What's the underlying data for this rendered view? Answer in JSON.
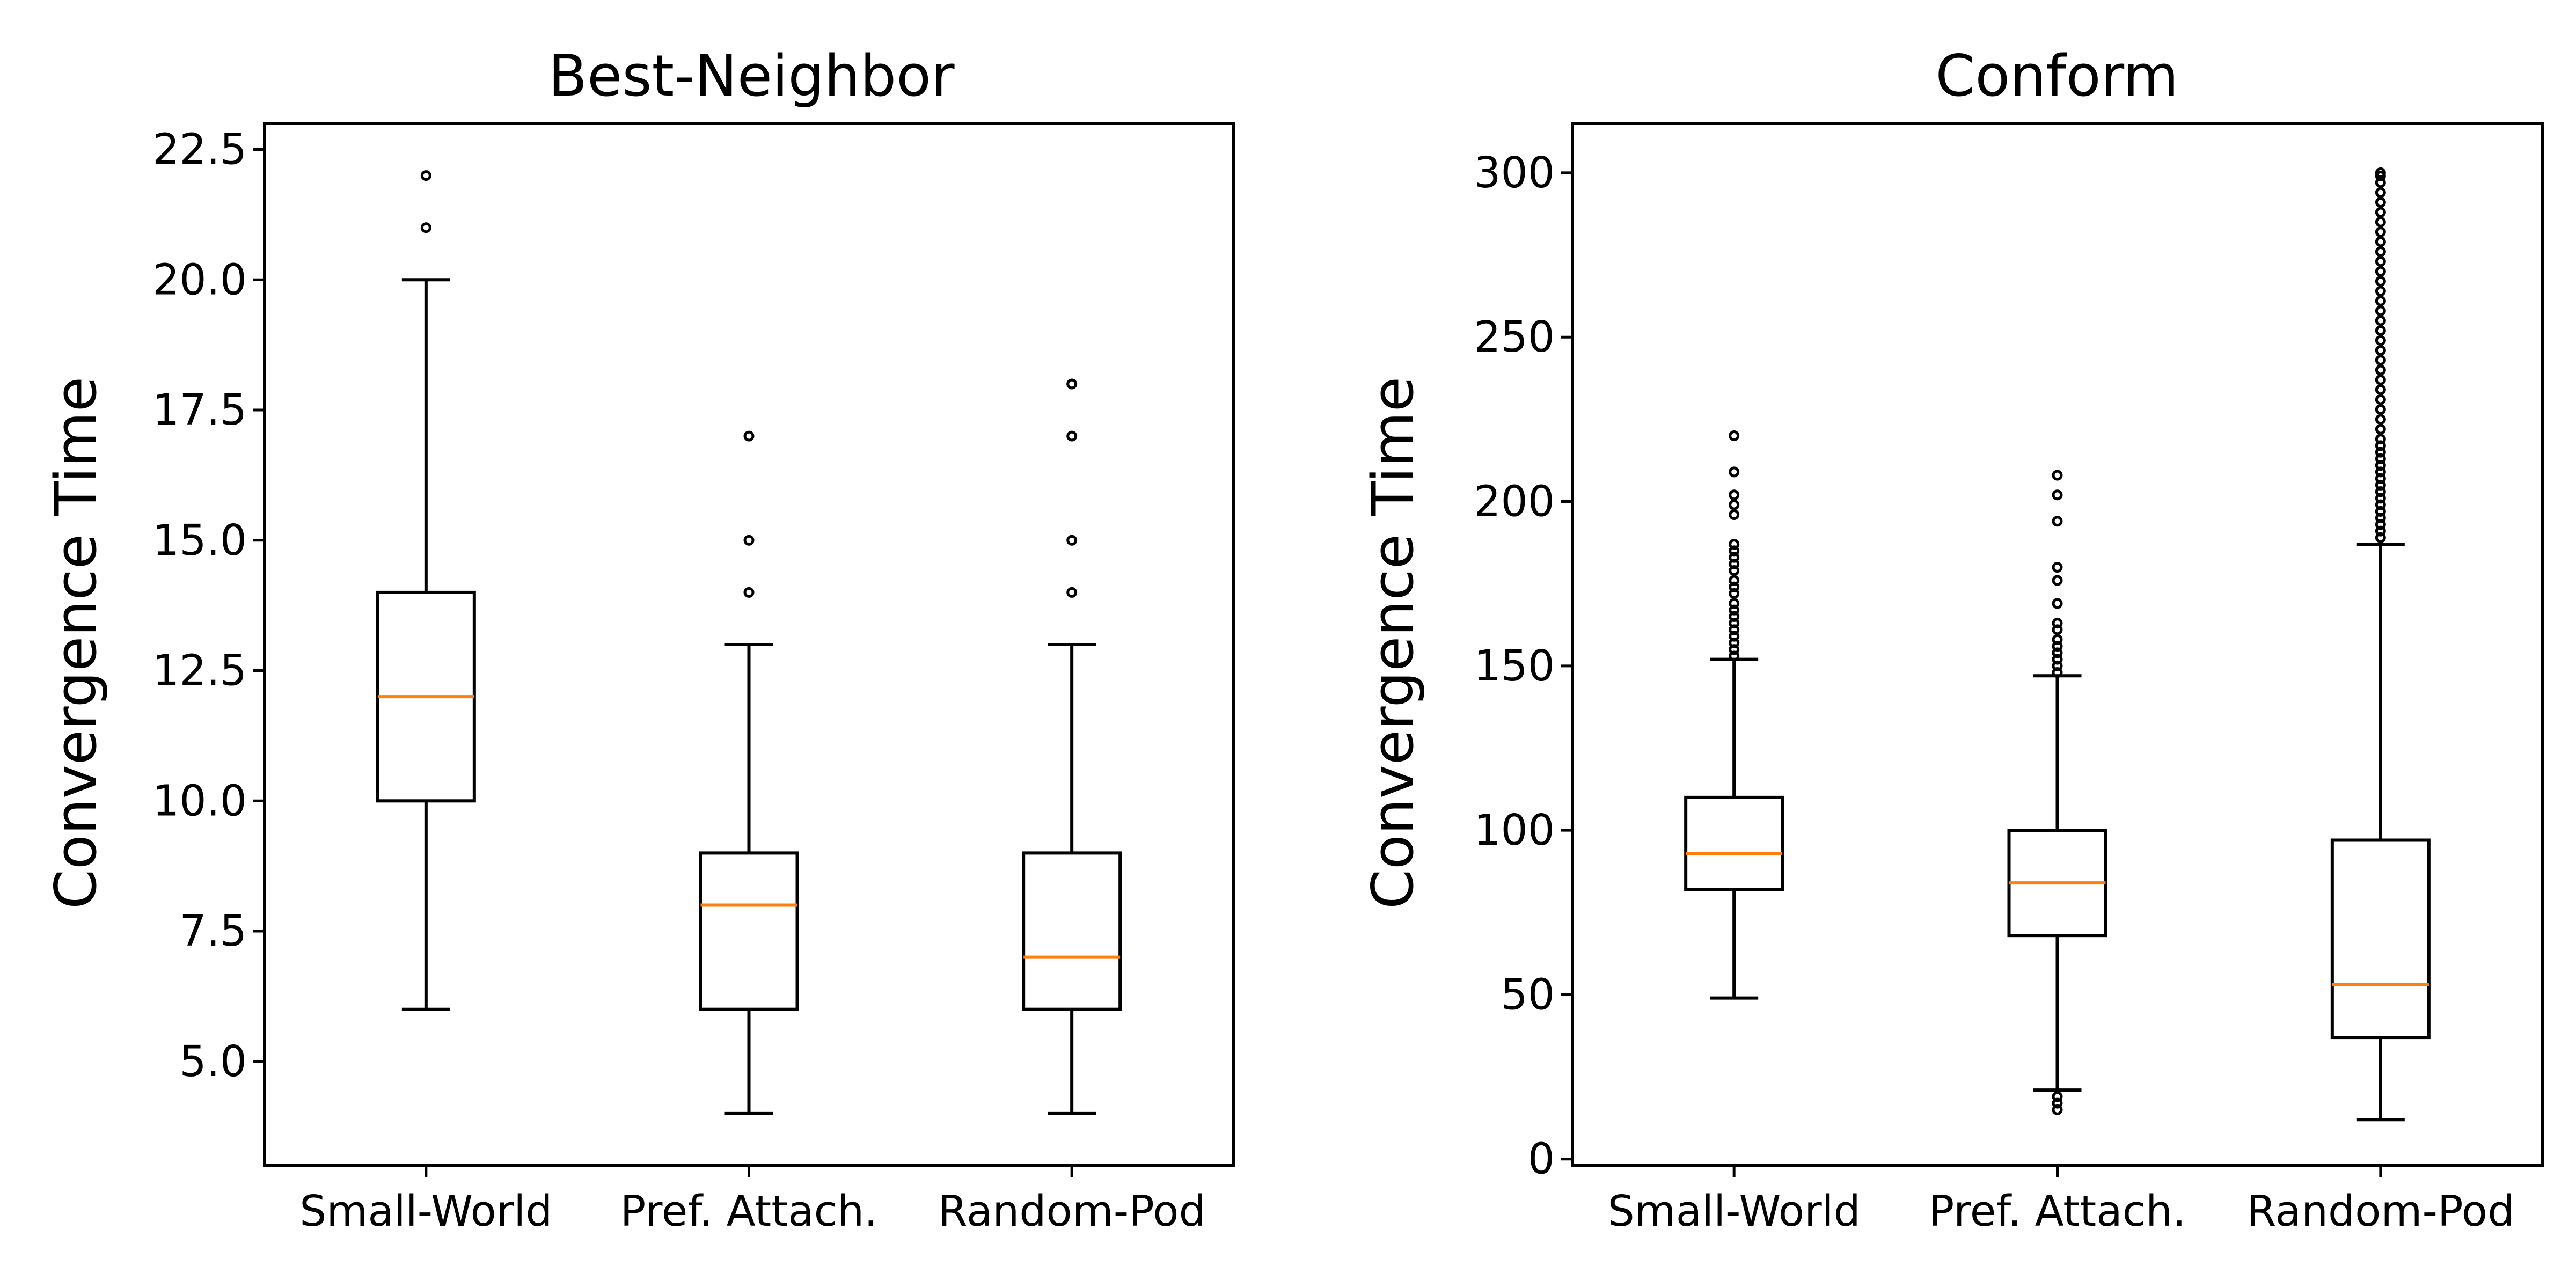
{
  "chart_data": [
    {
      "type": "box",
      "title": "Best-Neighbor",
      "xlabel": "",
      "ylabel": "Convergence Time",
      "categories": [
        "Small-World",
        "Pref. Attach.",
        "Random-Pod"
      ],
      "ylim": [
        3.0,
        23.0
      ],
      "yticks": [
        5.0,
        7.5,
        10.0,
        12.5,
        15.0,
        17.5,
        20.0,
        22.5
      ],
      "ytick_labels": [
        "5.0",
        "7.5",
        "10.0",
        "12.5",
        "15.0",
        "17.5",
        "20.0",
        "22.5"
      ],
      "grid": false,
      "colors": {
        "box": "#000000",
        "median": "#ff7f0e"
      },
      "boxes": [
        {
          "category": "Small-World",
          "whisker_low": 6,
          "q1": 10,
          "median": 12,
          "q3": 14,
          "whisker_high": 20,
          "outliers": [
            21,
            22
          ]
        },
        {
          "category": "Pref. Attach.",
          "whisker_low": 4,
          "q1": 6,
          "median": 8,
          "q3": 9,
          "whisker_high": 13,
          "outliers": [
            14,
            15,
            17
          ]
        },
        {
          "category": "Random-Pod",
          "whisker_low": 4,
          "q1": 6,
          "median": 7,
          "q3": 9,
          "whisker_high": 13,
          "outliers": [
            14,
            15,
            17,
            18
          ]
        }
      ]
    },
    {
      "type": "box",
      "title": "Conform",
      "xlabel": "",
      "ylabel": "Convergence Time",
      "categories": [
        "Small-World",
        "Pref. Attach.",
        "Random-Pod"
      ],
      "ylim": [
        -2,
        315
      ],
      "yticks": [
        0,
        50,
        100,
        150,
        200,
        250,
        300
      ],
      "ytick_labels": [
        "0",
        "50",
        "100",
        "150",
        "200",
        "250",
        "300"
      ],
      "grid": false,
      "colors": {
        "box": "#000000",
        "median": "#ff7f0e"
      },
      "boxes": [
        {
          "category": "Small-World",
          "whisker_low": 49,
          "q1": 82,
          "median": 93,
          "q3": 110,
          "whisker_high": 152,
          "outliers": [
            153,
            155,
            157,
            159,
            161,
            163,
            165,
            167,
            169,
            172,
            174,
            176,
            179,
            181,
            183,
            185,
            187,
            196,
            199,
            202,
            209,
            220
          ]
        },
        {
          "category": "Pref. Attach.",
          "whisker_low": 21,
          "q1": 68,
          "median": 84,
          "q3": 100,
          "whisker_high": 147,
          "outliers": [
            15,
            17,
            19,
            148,
            150,
            152,
            154,
            156,
            158,
            161,
            163,
            169,
            176,
            180,
            194,
            202,
            208
          ]
        },
        {
          "category": "Random-Pod",
          "whisker_low": 12,
          "q1": 37,
          "median": 53,
          "q3": 97,
          "whisker_high": 187,
          "outliers": [
            189,
            191,
            193,
            195,
            197,
            199,
            201,
            203,
            205,
            207,
            209,
            211,
            213,
            215,
            217,
            219,
            222,
            225,
            228,
            231,
            234,
            237,
            240,
            243,
            246,
            249,
            252,
            255,
            258,
            261,
            264,
            267,
            270,
            273,
            276,
            279,
            282,
            285,
            288,
            291,
            294,
            297,
            299,
            300
          ]
        }
      ]
    }
  ]
}
